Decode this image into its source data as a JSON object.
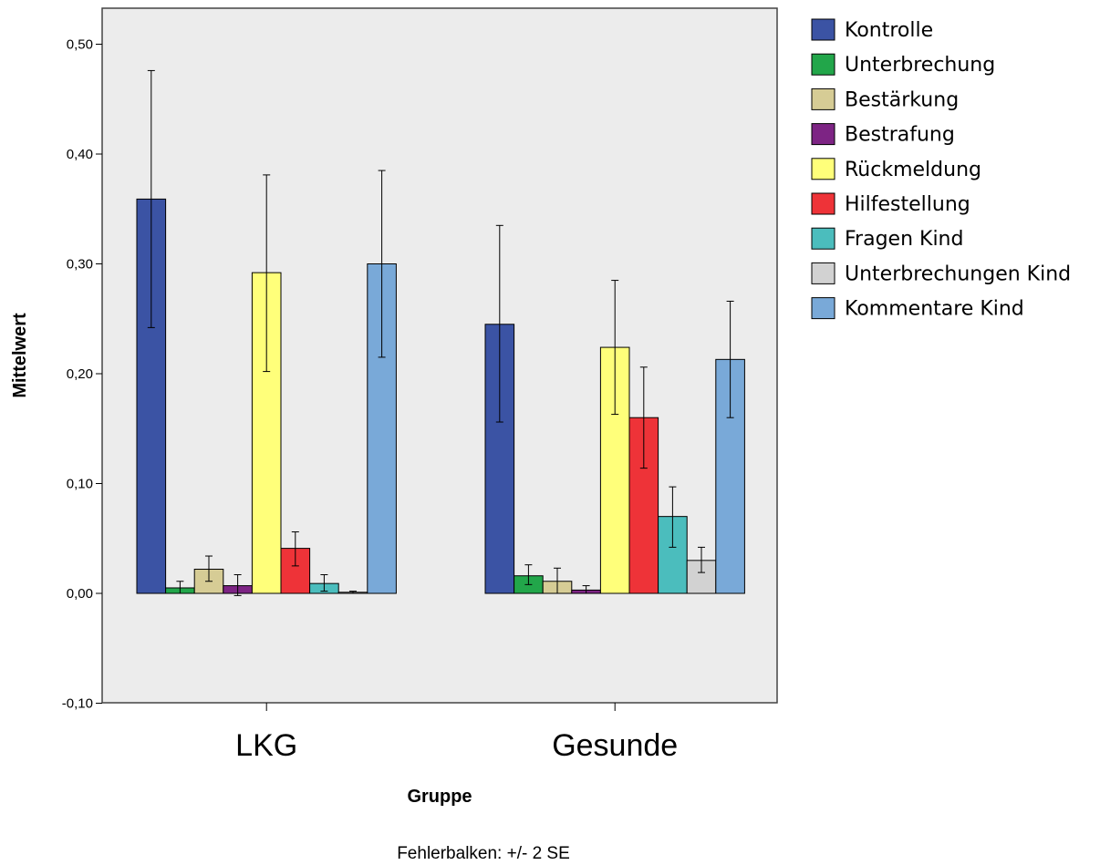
{
  "chart_data": {
    "type": "bar",
    "xlabel": "Gruppe",
    "ylabel": "Mittelwert",
    "footnote": "Fehlerbalken: +/- 2 SE",
    "categories": [
      "LKG",
      "Gesunde"
    ],
    "ylim": [
      -0.1,
      0.55
    ],
    "yticks": [
      -0.1,
      0.0,
      0.1,
      0.2,
      0.3,
      0.4,
      0.5
    ],
    "ytick_labels": [
      "-0,10",
      "0,00",
      "0,10",
      "0,20",
      "0,30",
      "0,40",
      "0,50"
    ],
    "grid": false,
    "legend_position": "right",
    "plot_background": "#ececec",
    "series": [
      {
        "name": "Kontrolle",
        "color": "#3b53a4",
        "values": [
          0.359,
          0.245
        ],
        "err_low": [
          0.242,
          0.156
        ],
        "err_high": [
          0.476,
          0.335
        ]
      },
      {
        "name": "Unterbrechung",
        "color": "#22a64a",
        "values": [
          0.005,
          0.016
        ],
        "err_low": [
          0.0,
          0.008
        ],
        "err_high": [
          0.011,
          0.026
        ]
      },
      {
        "name": "Bestärkung",
        "color": "#d6cc95",
        "values": [
          0.022,
          0.011
        ],
        "err_low": [
          0.011,
          0.0
        ],
        "err_high": [
          0.034,
          0.023
        ]
      },
      {
        "name": "Bestrafung",
        "color": "#7d2484",
        "values": [
          0.007,
          0.003
        ],
        "err_low": [
          -0.002,
          0.0
        ],
        "err_high": [
          0.017,
          0.007
        ]
      },
      {
        "name": "Rückmeldung",
        "color": "#ffff7a",
        "values": [
          0.292,
          0.224
        ],
        "err_low": [
          0.202,
          0.163
        ],
        "err_high": [
          0.381,
          0.285
        ]
      },
      {
        "name": "Hilfestellung",
        "color": "#ee3338",
        "values": [
          0.041,
          0.16
        ],
        "err_low": [
          0.025,
          0.114
        ],
        "err_high": [
          0.056,
          0.206
        ]
      },
      {
        "name": "Fragen Kind",
        "color": "#4bbdbd",
        "values": [
          0.009,
          0.07
        ],
        "err_low": [
          0.002,
          0.042
        ],
        "err_high": [
          0.017,
          0.097
        ]
      },
      {
        "name": "Unterbrechungen Kind",
        "color": "#d2d2d2",
        "values": [
          0.001,
          0.03
        ],
        "err_low": [
          0.0,
          0.019
        ],
        "err_high": [
          0.002,
          0.042
        ]
      },
      {
        "name": "Kommentare Kind",
        "color": "#79a9d8",
        "values": [
          0.3,
          0.213
        ],
        "err_low": [
          0.215,
          0.16
        ],
        "err_high": [
          0.385,
          0.266
        ]
      }
    ]
  }
}
